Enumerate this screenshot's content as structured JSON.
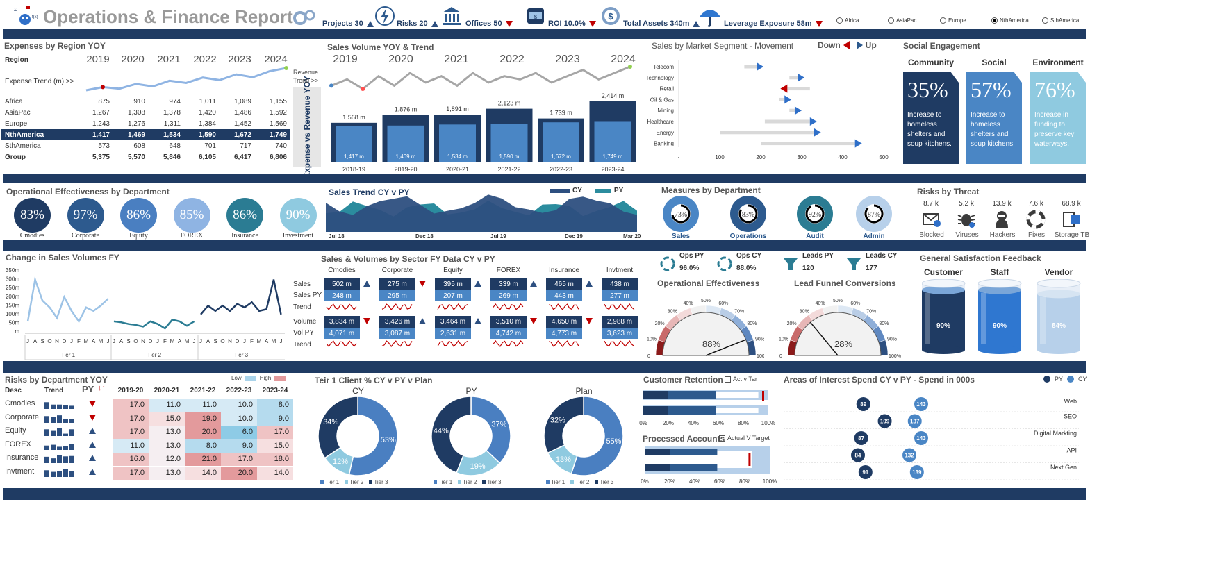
{
  "header": {
    "title": "Operations & Finance Report",
    "kpis": [
      {
        "label": "Projects 30",
        "dir": "up",
        "icon": "gears-icon"
      },
      {
        "label": "Risks 20",
        "dir": "up",
        "icon": "lightning-icon"
      },
      {
        "label": "Offices 50",
        "dir": "down",
        "icon": "bank-icon"
      },
      {
        "label": "ROI 10.0%",
        "dir": "down",
        "icon": "cash-icon"
      },
      {
        "label": "Total Assets 340m",
        "dir": "up",
        "icon": "dollar-coin-icon"
      },
      {
        "label": "Leverage Exposure 58m",
        "dir": "down",
        "icon": "umbrella-icon"
      }
    ],
    "regions": [
      {
        "label": "Africa",
        "selected": false
      },
      {
        "label": "AsiaPac",
        "selected": false
      },
      {
        "label": "Europe",
        "selected": false
      },
      {
        "label": "NthAmerica",
        "selected": true
      },
      {
        "label": "SthAmerica",
        "selected": false
      }
    ]
  },
  "expenses": {
    "title": "Expenses by Region YOY",
    "region_label": "Region",
    "years": [
      "2019",
      "2020",
      "2021",
      "2022",
      "2023",
      "2024"
    ],
    "trend_label": "Expense Trend (m)  >>",
    "trend": [
      3,
      4,
      3.5,
      5,
      4.2,
      6,
      5.3,
      7,
      6.2,
      8,
      7.1,
      9,
      10
    ],
    "rows": [
      {
        "name": "Africa",
        "vals": [
          "875",
          "910",
          "974",
          "1,011",
          "1,089",
          "1,155"
        ],
        "style": ""
      },
      {
        "name": "AsiaPac",
        "vals": [
          "1,267",
          "1,308",
          "1,378",
          "1,420",
          "1,486",
          "1,592"
        ],
        "style": ""
      },
      {
        "name": "Europe",
        "vals": [
          "1,243",
          "1,276",
          "1,311",
          "1,384",
          "1,452",
          "1,569"
        ],
        "style": ""
      },
      {
        "name": "NthAmerica",
        "vals": [
          "1,417",
          "1,469",
          "1,534",
          "1,590",
          "1,672",
          "1,749"
        ],
        "style": "hl"
      },
      {
        "name": "SthAmerica",
        "vals": [
          "573",
          "608",
          "648",
          "701",
          "717",
          "740"
        ],
        "style": ""
      },
      {
        "name": "Group",
        "vals": [
          "5,375",
          "5,570",
          "5,846",
          "6,105",
          "6,417",
          "6,806"
        ],
        "style": "bold"
      }
    ],
    "side_label": "Expense vs Revenue YOY"
  },
  "sales_volume": {
    "title": "Sales Volume YOY & Trend",
    "years": [
      "2019",
      "2020",
      "2021",
      "2022",
      "2023",
      "2024"
    ],
    "trend_label": "Revenue Trend >>",
    "trend": [
      5,
      7,
      4,
      8,
      5,
      9,
      6,
      8,
      5,
      9,
      6,
      8,
      7,
      9,
      6,
      8,
      10,
      7,
      9,
      11
    ],
    "bars": [
      {
        "period": "2018-19",
        "revenue": "1,568 m",
        "expense": "1,417 m",
        "rev": 1568,
        "exp": 1417
      },
      {
        "period": "2019-20",
        "revenue": "1,876 m",
        "expense": "1,469 m",
        "rev": 1876,
        "exp": 1469
      },
      {
        "period": "2020-21",
        "revenue": "1,891 m",
        "expense": "1,534 m",
        "rev": 1891,
        "exp": 1534
      },
      {
        "period": "2021-22",
        "revenue": "2,123 m",
        "expense": "1,590 m",
        "rev": 2123,
        "exp": 1590
      },
      {
        "period": "2022-23",
        "revenue": "1,739 m",
        "expense": "1,672 m",
        "rev": 1739,
        "exp": 1672
      },
      {
        "period": "2023-24",
        "revenue": "2,414 m",
        "expense": "1,749 m",
        "rev": 2414,
        "exp": 1749
      }
    ]
  },
  "segments": {
    "title": "Sales by Market Segment - Movement",
    "down_label": "Down",
    "up_label": "Up",
    "axis": [
      "-",
      "100",
      "200",
      "300",
      "400",
      "500"
    ],
    "items": [
      {
        "name": "Telecom",
        "from": 160,
        "to": 190,
        "dir": "up"
      },
      {
        "name": "Technology",
        "from": 270,
        "to": 290,
        "dir": "up"
      },
      {
        "name": "Retail",
        "from": 320,
        "to": 265,
        "dir": "down"
      },
      {
        "name": "Oil & Gas",
        "from": 245,
        "to": 258,
        "dir": "up"
      },
      {
        "name": "Mining",
        "from": 270,
        "to": 283,
        "dir": "up"
      },
      {
        "name": "Healthcare",
        "from": 210,
        "to": 320,
        "dir": "up"
      },
      {
        "name": "Energy",
        "from": 100,
        "to": 330,
        "dir": "up"
      },
      {
        "name": "Banking",
        "from": 200,
        "to": 430,
        "dir": "up"
      }
    ]
  },
  "social": {
    "title": "Social Engagement",
    "cards": [
      {
        "heading": "Community",
        "pct": "35%",
        "text": "Increase to homeless shelters and soup kitchens.",
        "color": "#1f3b63"
      },
      {
        "heading": "Social",
        "pct": "57%",
        "text": "Increase to homeless shelters and soup kitchens.",
        "color": "#4a86c5"
      },
      {
        "heading": "Environment",
        "pct": "76%",
        "text": "Increase in funding to preserve key waterways.",
        "color": "#8fcae0"
      }
    ]
  },
  "op_eff": {
    "title": "Operational Effectiveness by Department",
    "items": [
      {
        "name": "Cmodies",
        "pct": "83%",
        "color": "#1f3b63"
      },
      {
        "name": "Corporate",
        "pct": "97%",
        "color": "#2d5a8e"
      },
      {
        "name": "Equity",
        "pct": "86%",
        "color": "#4a7fc1"
      },
      {
        "name": "FOREX",
        "pct": "85%",
        "color": "#8fb4e3"
      },
      {
        "name": "Insurance",
        "pct": "86%",
        "color": "#2b7c93"
      },
      {
        "name": "Investment",
        "pct": "90%",
        "color": "#8fcae0"
      }
    ]
  },
  "sales_trend": {
    "title": "Sales Trend CY v PY",
    "legend": [
      "CY",
      "PY"
    ],
    "xlabels": [
      "Jul 18",
      "Dec 18",
      "Jul 19",
      "Dec 19",
      "Mar 20"
    ]
  },
  "measures": {
    "title": "Measures by Department",
    "items": [
      {
        "name": "Sales",
        "pct": "73%",
        "value": 73,
        "color": "#4a86c5"
      },
      {
        "name": "Operations",
        "pct": "83%",
        "value": 83,
        "color": "#2d5a8e"
      },
      {
        "name": "Audit",
        "pct": "92%",
        "value": 92,
        "color": "#2b7c93"
      },
      {
        "name": "Admin",
        "pct": "87%",
        "value": 87,
        "color": "#b7d0ea"
      }
    ]
  },
  "risks_threat": {
    "title": "Risks by Threat",
    "items": [
      {
        "value": "8.7 k",
        "name": "Blocked",
        "icon": "mail-shield-icon"
      },
      {
        "value": "5.2 k",
        "name": "Viruses",
        "icon": "bug-icon"
      },
      {
        "value": "13.9 k",
        "name": "Hackers",
        "icon": "hacker-icon"
      },
      {
        "value": "7.6 k",
        "name": "Fixes",
        "icon": "lifebuoy-icon"
      },
      {
        "value": "68.9 k",
        "name": "Storage TB",
        "icon": "server-icon"
      }
    ]
  },
  "change_sales": {
    "title": "Change in Sales Volumes FY",
    "yaxis": [
      "350m",
      "300m",
      "250m",
      "200m",
      "150m",
      "100m",
      "50m",
      "m"
    ],
    "months": [
      "J",
      "A",
      "S",
      "O",
      "N",
      "D",
      "J",
      "F",
      "M",
      "A",
      "M",
      "J"
    ],
    "tiers": [
      "Tier 1",
      "Tier 2",
      "Tier 3"
    ]
  },
  "sector": {
    "title": "Sales & Volumes by Sector FY Data CY v PY",
    "row_labels": [
      "Sales",
      "Sales PY",
      "Trend",
      "Volume",
      "Vol PY",
      "Trend"
    ],
    "cols": [
      {
        "name": "Cmodies",
        "sales": "502 m",
        "sales_py": "248 m",
        "sales_dir": "up",
        "vol": "3,834 m",
        "vol_py": "4,071 m",
        "vol_dir": "down"
      },
      {
        "name": "Corporate",
        "sales": "275 m",
        "sales_py": "295 m",
        "sales_dir": "down",
        "vol": "3,426 m",
        "vol_py": "3,087 m",
        "vol_dir": "up"
      },
      {
        "name": "Equity",
        "sales": "395 m",
        "sales_py": "207 m",
        "sales_dir": "up",
        "vol": "3,464 m",
        "vol_py": "2,631 m",
        "vol_dir": "up"
      },
      {
        "name": "FOREX",
        "sales": "339 m",
        "sales_py": "269 m",
        "sales_dir": "up",
        "vol": "3,510 m",
        "vol_py": "4,742 m",
        "vol_dir": "down"
      },
      {
        "name": "Insurance",
        "sales": "465 m",
        "sales_py": "443 m",
        "sales_dir": "up",
        "vol": "4,650 m",
        "vol_py": "4,773 m",
        "vol_dir": "down"
      },
      {
        "name": "Invtment",
        "sales": "438 m",
        "sales_py": "277 m",
        "sales_dir": "",
        "vol": "2,988 m",
        "vol_py": "3,623 m",
        "vol_dir": ""
      }
    ]
  },
  "ops_leads": {
    "ops_py_label": "Ops PY",
    "ops_py": "96.0%",
    "ops_cy_label": "Ops CY",
    "ops_cy": "88.0%",
    "leads_py_label": "Leads PY",
    "leads_py": "120",
    "leads_cy_label": "Leads CY",
    "leads_cy": "177",
    "gauge1_title": "Operational Effectiveness",
    "gauge1_value": "88%",
    "gauge1_pct": 88,
    "gauge2_title": "Lead Funnel Conversions",
    "gauge2_value": "28%",
    "gauge2_pct": 28,
    "ticks": [
      "0",
      "10%",
      "20%",
      "30%",
      "40%",
      "50%",
      "60%",
      "70%",
      "80%",
      "90%",
      "100%"
    ]
  },
  "satisfaction": {
    "title": "General Satisfaction  Feedback",
    "items": [
      {
        "name": "Customer",
        "pct": "90%",
        "value": 90,
        "color": "#1f3b63"
      },
      {
        "name": "Staff",
        "pct": "90%",
        "value": 90,
        "color": "#2f77d0"
      },
      {
        "name": "Vendor",
        "pct": "84%",
        "value": 84,
        "color": "#b7d0ea"
      }
    ]
  },
  "risk_dept": {
    "title": "Risks by Department YOY",
    "legend_low": "Low",
    "legend_high": "High",
    "head": {
      "desc": "Desc",
      "trend": "Trend",
      "py": "PY"
    },
    "years": [
      "2019-20",
      "2020-21",
      "2021-22",
      "2022-23",
      "2023-24"
    ],
    "rows": [
      {
        "name": "Cmodies",
        "dir": "down",
        "vals": [
          "17.0",
          "11.0",
          "11.0",
          "10.0",
          "8.0"
        ]
      },
      {
        "name": "Corporate",
        "dir": "down",
        "vals": [
          "17.0",
          "15.0",
          "19.0",
          "10.0",
          "9.0"
        ]
      },
      {
        "name": "Equity",
        "dir": "up",
        "vals": [
          "17.0",
          "13.0",
          "20.0",
          "6.0",
          "17.0"
        ]
      },
      {
        "name": "FOREX",
        "dir": "up",
        "vals": [
          "11.0",
          "13.0",
          "8.0",
          "9.0",
          "15.0"
        ]
      },
      {
        "name": "Insurance",
        "dir": "up",
        "vals": [
          "16.0",
          "12.0",
          "21.0",
          "17.0",
          "18.0"
        ]
      },
      {
        "name": "Invtment",
        "dir": "up",
        "vals": [
          "17.0",
          "13.0",
          "14.0",
          "20.0",
          "14.0"
        ]
      }
    ]
  },
  "client_pct": {
    "title": "Teir 1   Client %   CY   v   PY   v   Plan",
    "legend": [
      "Tier 1",
      "Tier 2",
      "Tier 3"
    ],
    "charts": [
      {
        "name": "CY",
        "t1": 53,
        "t2": 12,
        "t3": 34,
        "l1": "53%",
        "l2": "12%",
        "l3": "34%"
      },
      {
        "name": "PY",
        "t1": 37,
        "t2": 19,
        "t3": 44,
        "l1": "37%",
        "l2": "19%",
        "l3": "44%"
      },
      {
        "name": "Plan",
        "t1": 55,
        "t2": 13,
        "t3": 32,
        "l1": "55%",
        "l2": "13%",
        "l3": "32%"
      }
    ]
  },
  "retention": {
    "title": "Customer Retention",
    "check_label": "Act v Tar",
    "title2": "Processed Accounts",
    "check_label2": "Actual V Target",
    "axis": [
      "0%",
      "20%",
      "40%",
      "60%",
      "80%",
      "100%"
    ]
  },
  "interest": {
    "title": "Areas of Interest Spend CY v PY - Spend in 000s",
    "legend": [
      "PY",
      "CY"
    ],
    "items": [
      {
        "name": "Web",
        "py": "89",
        "cy": "143",
        "pyv": 89,
        "cyv": 143
      },
      {
        "name": "SEO",
        "py": "109",
        "cy": "137",
        "pyv": 109,
        "cyv": 137
      },
      {
        "name": "Digital Markting",
        "py": "87",
        "cy": "143",
        "pyv": 87,
        "cyv": 143
      },
      {
        "name": "API",
        "py": "84",
        "cy": "132",
        "pyv": 84,
        "cyv": 132
      },
      {
        "name": "Next Gen",
        "py": "91",
        "cy": "139",
        "pyv": 91,
        "cyv": 139
      }
    ]
  }
}
